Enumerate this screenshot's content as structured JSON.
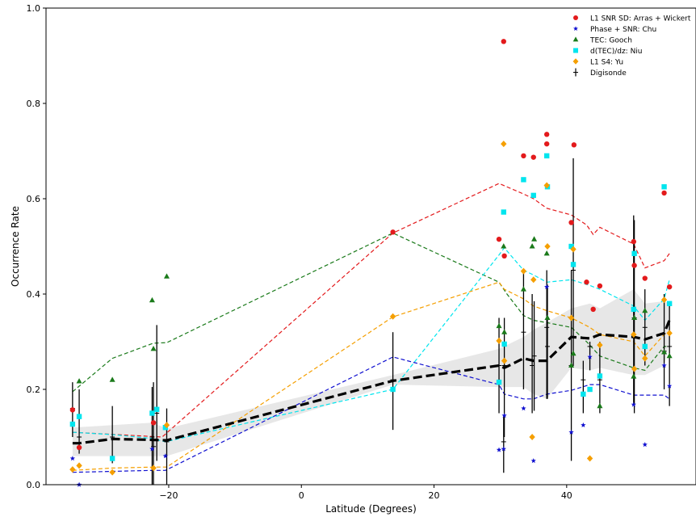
{
  "chart_data": {
    "type": "scatter",
    "title": "",
    "xlabel": "Latitude (Degrees)",
    "ylabel": "Occurrence Rate",
    "xlim": [
      -38.5,
      59.5
    ],
    "ylim": [
      0.0,
      1.0
    ],
    "xticks": [
      -20,
      0,
      20,
      40
    ],
    "xtick_labels": [
      "−20",
      "0",
      "20",
      "40"
    ],
    "yticks": [
      0.0,
      0.2,
      0.4,
      0.6,
      0.8,
      1.0
    ],
    "ytick_labels": [
      "0.0",
      "0.2",
      "0.4",
      "0.6",
      "0.8",
      "1.0"
    ],
    "grid": false,
    "legend_position": "top-right",
    "series": [
      {
        "name": "L1 SNR SD: Arras + Wickert",
        "marker": "circle",
        "color": "#e31a1c",
        "points": [
          [
            -34.5,
            0.157
          ],
          [
            -33.5,
            0.078
          ],
          [
            -22.3,
            0.13
          ],
          [
            30.5,
            0.93
          ],
          [
            33.5,
            0.69
          ],
          [
            35.0,
            0.687
          ],
          [
            37.0,
            0.735
          ],
          [
            37.0,
            0.715
          ],
          [
            40.7,
            0.55
          ],
          [
            41.1,
            0.713
          ],
          [
            43.0,
            0.425
          ],
          [
            44.0,
            0.368
          ],
          [
            45.0,
            0.417
          ],
          [
            50.1,
            0.51
          ],
          [
            50.2,
            0.46
          ],
          [
            51.8,
            0.433
          ],
          [
            54.7,
            0.612
          ],
          [
            55.5,
            0.415
          ],
          [
            29.8,
            0.515
          ],
          [
            30.6,
            0.48
          ],
          [
            13.8,
            0.53
          ]
        ],
        "trend": [
          [
            -34.5,
            0.11
          ],
          [
            -21,
            0.1
          ],
          [
            13.8,
            0.528
          ],
          [
            29.8,
            0.632
          ],
          [
            33.5,
            0.61
          ],
          [
            35.0,
            0.6
          ],
          [
            37.0,
            0.58
          ],
          [
            40.7,
            0.566
          ],
          [
            43.0,
            0.545
          ],
          [
            44.0,
            0.525
          ],
          [
            45.0,
            0.54
          ],
          [
            50.1,
            0.505
          ],
          [
            51.8,
            0.455
          ],
          [
            54.7,
            0.47
          ],
          [
            55.5,
            0.485
          ]
        ]
      },
      {
        "name": "Phase + SNR: Chu",
        "marker": "star",
        "color": "#1010d0",
        "points": [
          [
            -34.5,
            0.055
          ],
          [
            -33.5,
            0.0
          ],
          [
            -22.5,
            0.075
          ],
          [
            -20.5,
            0.06
          ],
          [
            29.8,
            0.073
          ],
          [
            30.5,
            0.075
          ],
          [
            30.6,
            0.145
          ],
          [
            33.5,
            0.16
          ],
          [
            35.0,
            0.05
          ],
          [
            37.0,
            0.415
          ],
          [
            40.7,
            0.11
          ],
          [
            42.5,
            0.125
          ],
          [
            43.5,
            0.268
          ],
          [
            50.1,
            0.168
          ],
          [
            51.8,
            0.084
          ],
          [
            54.7,
            0.25
          ],
          [
            55.5,
            0.207
          ]
        ],
        "trend": [
          [
            -34.5,
            0.026
          ],
          [
            -22.5,
            0.03
          ],
          [
            -20.5,
            0.03
          ],
          [
            13.8,
            0.268
          ],
          [
            29.8,
            0.21
          ],
          [
            30.6,
            0.19
          ],
          [
            33.5,
            0.18
          ],
          [
            35.0,
            0.18
          ],
          [
            37.0,
            0.19
          ],
          [
            40.7,
            0.198
          ],
          [
            43.5,
            0.21
          ],
          [
            45.0,
            0.21
          ],
          [
            50.1,
            0.188
          ],
          [
            51.8,
            0.188
          ],
          [
            54.7,
            0.188
          ],
          [
            55.5,
            0.18
          ]
        ]
      },
      {
        "name": "TEC: Gooch",
        "marker": "triangle",
        "color": "#1a7a1a",
        "points": [
          [
            -33.5,
            0.217
          ],
          [
            -28.5,
            0.22
          ],
          [
            -22.5,
            0.387
          ],
          [
            -22.3,
            0.285
          ],
          [
            -20.3,
            0.437
          ],
          [
            29.8,
            0.333
          ],
          [
            30.5,
            0.5
          ],
          [
            30.6,
            0.32
          ],
          [
            33.5,
            0.41
          ],
          [
            34.8,
            0.5
          ],
          [
            35.1,
            0.515
          ],
          [
            37.0,
            0.485
          ],
          [
            37.1,
            0.35
          ],
          [
            40.7,
            0.25
          ],
          [
            41.0,
            0.275
          ],
          [
            45.0,
            0.165
          ],
          [
            50.1,
            0.227
          ],
          [
            50.2,
            0.35
          ],
          [
            51.8,
            0.365
          ],
          [
            54.7,
            0.278
          ],
          [
            55.5,
            0.27
          ]
        ],
        "trend": [
          [
            -34.5,
            0.195
          ],
          [
            -28.5,
            0.265
          ],
          [
            -22.3,
            0.297
          ],
          [
            -20.3,
            0.298
          ],
          [
            13.8,
            0.528
          ],
          [
            29.8,
            0.425
          ],
          [
            31.0,
            0.4
          ],
          [
            33.5,
            0.355
          ],
          [
            35.0,
            0.345
          ],
          [
            37.0,
            0.34
          ],
          [
            40.7,
            0.33
          ],
          [
            43.0,
            0.3
          ],
          [
            45.0,
            0.27
          ],
          [
            50.1,
            0.245
          ],
          [
            51.8,
            0.24
          ],
          [
            54.7,
            0.29
          ],
          [
            55.5,
            0.29
          ]
        ]
      },
      {
        "name": "d(TEC)/dz: Niu",
        "marker": "square",
        "color": "#00e5ee",
        "points": [
          [
            -34.5,
            0.127
          ],
          [
            -33.5,
            0.143
          ],
          [
            -28.5,
            0.055
          ],
          [
            -22.5,
            0.15
          ],
          [
            -21.8,
            0.158
          ],
          [
            -20.5,
            0.12
          ],
          [
            13.8,
            0.2
          ],
          [
            29.8,
            0.215
          ],
          [
            30.5,
            0.572
          ],
          [
            30.6,
            0.295
          ],
          [
            33.5,
            0.64
          ],
          [
            35.0,
            0.607
          ],
          [
            37.0,
            0.69
          ],
          [
            37.1,
            0.625
          ],
          [
            40.7,
            0.5
          ],
          [
            41.0,
            0.462
          ],
          [
            42.5,
            0.19
          ],
          [
            43.5,
            0.2
          ],
          [
            45.0,
            0.228
          ],
          [
            50.1,
            0.368
          ],
          [
            50.2,
            0.485
          ],
          [
            51.8,
            0.29
          ],
          [
            54.7,
            0.625
          ],
          [
            55.5,
            0.38
          ]
        ],
        "trend": [
          [
            -34.5,
            0.11
          ],
          [
            -28.5,
            0.105
          ],
          [
            -22.5,
            0.097
          ],
          [
            -20.5,
            0.09
          ],
          [
            13.8,
            0.2
          ],
          [
            29.8,
            0.482
          ],
          [
            30.6,
            0.497
          ],
          [
            33.5,
            0.45
          ],
          [
            35.0,
            0.44
          ],
          [
            37.0,
            0.425
          ],
          [
            40.7,
            0.43
          ],
          [
            43.5,
            0.418
          ],
          [
            45.0,
            0.41
          ],
          [
            50.1,
            0.375
          ],
          [
            51.8,
            0.345
          ],
          [
            54.7,
            0.39
          ],
          [
            55.5,
            0.43
          ]
        ]
      },
      {
        "name": "L1 S4: Yu",
        "marker": "diamond",
        "color": "#f59f00",
        "points": [
          [
            -34.5,
            0.032
          ],
          [
            -33.5,
            0.04
          ],
          [
            -28.5,
            0.026
          ],
          [
            -22.3,
            0.035
          ],
          [
            -20.3,
            0.125
          ],
          [
            13.8,
            0.353
          ],
          [
            29.8,
            0.302
          ],
          [
            30.5,
            0.715
          ],
          [
            30.6,
            0.26
          ],
          [
            33.5,
            0.448
          ],
          [
            34.8,
            0.1
          ],
          [
            35.0,
            0.43
          ],
          [
            37.0,
            0.628
          ],
          [
            37.1,
            0.5
          ],
          [
            40.7,
            0.35
          ],
          [
            41.0,
            0.494
          ],
          [
            43.5,
            0.055
          ],
          [
            45.0,
            0.293
          ],
          [
            50.1,
            0.315
          ],
          [
            50.2,
            0.243
          ],
          [
            51.8,
            0.265
          ],
          [
            54.7,
            0.388
          ],
          [
            55.5,
            0.318
          ]
        ],
        "trend": [
          [
            -34.5,
            0.03
          ],
          [
            -28.5,
            0.035
          ],
          [
            -22.3,
            0.037
          ],
          [
            -20.3,
            0.037
          ],
          [
            13.8,
            0.352
          ],
          [
            29.8,
            0.425
          ],
          [
            30.6,
            0.41
          ],
          [
            33.5,
            0.39
          ],
          [
            35.0,
            0.375
          ],
          [
            37.0,
            0.365
          ],
          [
            40.7,
            0.35
          ],
          [
            43.5,
            0.33
          ],
          [
            45.0,
            0.315
          ],
          [
            50.1,
            0.3
          ],
          [
            51.8,
            0.27
          ],
          [
            54.7,
            0.315
          ],
          [
            55.5,
            0.32
          ]
        ]
      }
    ],
    "digisonde": {
      "name": "Digisonde",
      "marker": "plus",
      "color": "#000000",
      "points": [
        [
          -34.5,
          0.16,
          0.1,
          0.215
        ],
        [
          -33.5,
          0.1,
          0.065,
          0.2
        ],
        [
          -28.5,
          0.1,
          0.045,
          0.165
        ],
        [
          -22.5,
          0.1,
          0.0,
          0.205
        ],
        [
          -22.3,
          0.08,
          0.0,
          0.215
        ],
        [
          -21.8,
          0.15,
          0.05,
          0.335
        ],
        [
          -20.3,
          0.09,
          0.0,
          0.16
        ],
        [
          13.8,
          0.22,
          0.115,
          0.32
        ],
        [
          29.8,
          0.25,
          0.15,
          0.35
        ],
        [
          30.5,
          0.09,
          0.025,
          0.145
        ],
        [
          30.6,
          0.25,
          0.1,
          0.35
        ],
        [
          33.5,
          0.32,
          0.2,
          0.45
        ],
        [
          34.8,
          0.25,
          0.15,
          0.4
        ],
        [
          35.1,
          0.27,
          0.155,
          0.385
        ],
        [
          37.0,
          0.33,
          0.18,
          0.45
        ],
        [
          37.1,
          0.29,
          0.18,
          0.42
        ],
        [
          40.7,
          0.25,
          0.05,
          0.45
        ],
        [
          41.0,
          0.45,
          0.25,
          0.685
        ],
        [
          42.5,
          0.22,
          0.15,
          0.26
        ],
        [
          43.5,
          0.29,
          0.24,
          0.3
        ],
        [
          45.0,
          0.22,
          0.15,
          0.3
        ],
        [
          50.1,
          0.37,
          0.17,
          0.565
        ],
        [
          50.2,
          0.35,
          0.15,
          0.555
        ],
        [
          51.8,
          0.33,
          0.25,
          0.41
        ],
        [
          54.7,
          0.28,
          0.2,
          0.4
        ],
        [
          55.5,
          0.29,
          0.165,
          0.38
        ]
      ],
      "mean_trend": [
        [
          -34.5,
          0.087
        ],
        [
          -33.5,
          0.087
        ],
        [
          -28.5,
          0.096
        ],
        [
          -22.5,
          0.094
        ],
        [
          -20.3,
          0.093
        ],
        [
          13.8,
          0.218
        ],
        [
          29.8,
          0.25
        ],
        [
          30.6,
          0.245
        ],
        [
          33.5,
          0.265
        ],
        [
          35.0,
          0.26
        ],
        [
          37.0,
          0.26
        ],
        [
          40.7,
          0.31
        ],
        [
          42.5,
          0.308
        ],
        [
          43.5,
          0.307
        ],
        [
          45.0,
          0.315
        ],
        [
          50.1,
          0.31
        ],
        [
          51.8,
          0.305
        ],
        [
          54.7,
          0.318
        ],
        [
          55.5,
          0.345
        ]
      ],
      "band_upper": [
        [
          -34.5,
          0.12
        ],
        [
          -28.5,
          0.125
        ],
        [
          -22.5,
          0.13
        ],
        [
          -20.3,
          0.118
        ],
        [
          13.8,
          0.23
        ],
        [
          29.8,
          0.285
        ],
        [
          33.5,
          0.31
        ],
        [
          35.0,
          0.325
        ],
        [
          37.0,
          0.34
        ],
        [
          40.7,
          0.37
        ],
        [
          43.5,
          0.38
        ],
        [
          45.0,
          0.37
        ],
        [
          50.1,
          0.41
        ],
        [
          51.8,
          0.38
        ],
        [
          54.7,
          0.385
        ],
        [
          55.5,
          0.38
        ]
      ],
      "band_lower": [
        [
          -34.5,
          0.06
        ],
        [
          -28.5,
          0.06
        ],
        [
          -22.5,
          0.06
        ],
        [
          -20.3,
          0.06
        ],
        [
          13.8,
          0.21
        ],
        [
          29.8,
          0.205
        ],
        [
          33.5,
          0.205
        ],
        [
          35.0,
          0.19
        ],
        [
          37.0,
          0.18
        ],
        [
          40.7,
          0.245
        ],
        [
          43.5,
          0.24
        ],
        [
          45.0,
          0.245
        ],
        [
          50.1,
          0.23
        ],
        [
          51.8,
          0.23
        ],
        [
          54.7,
          0.25
        ],
        [
          55.5,
          0.3
        ]
      ]
    }
  }
}
